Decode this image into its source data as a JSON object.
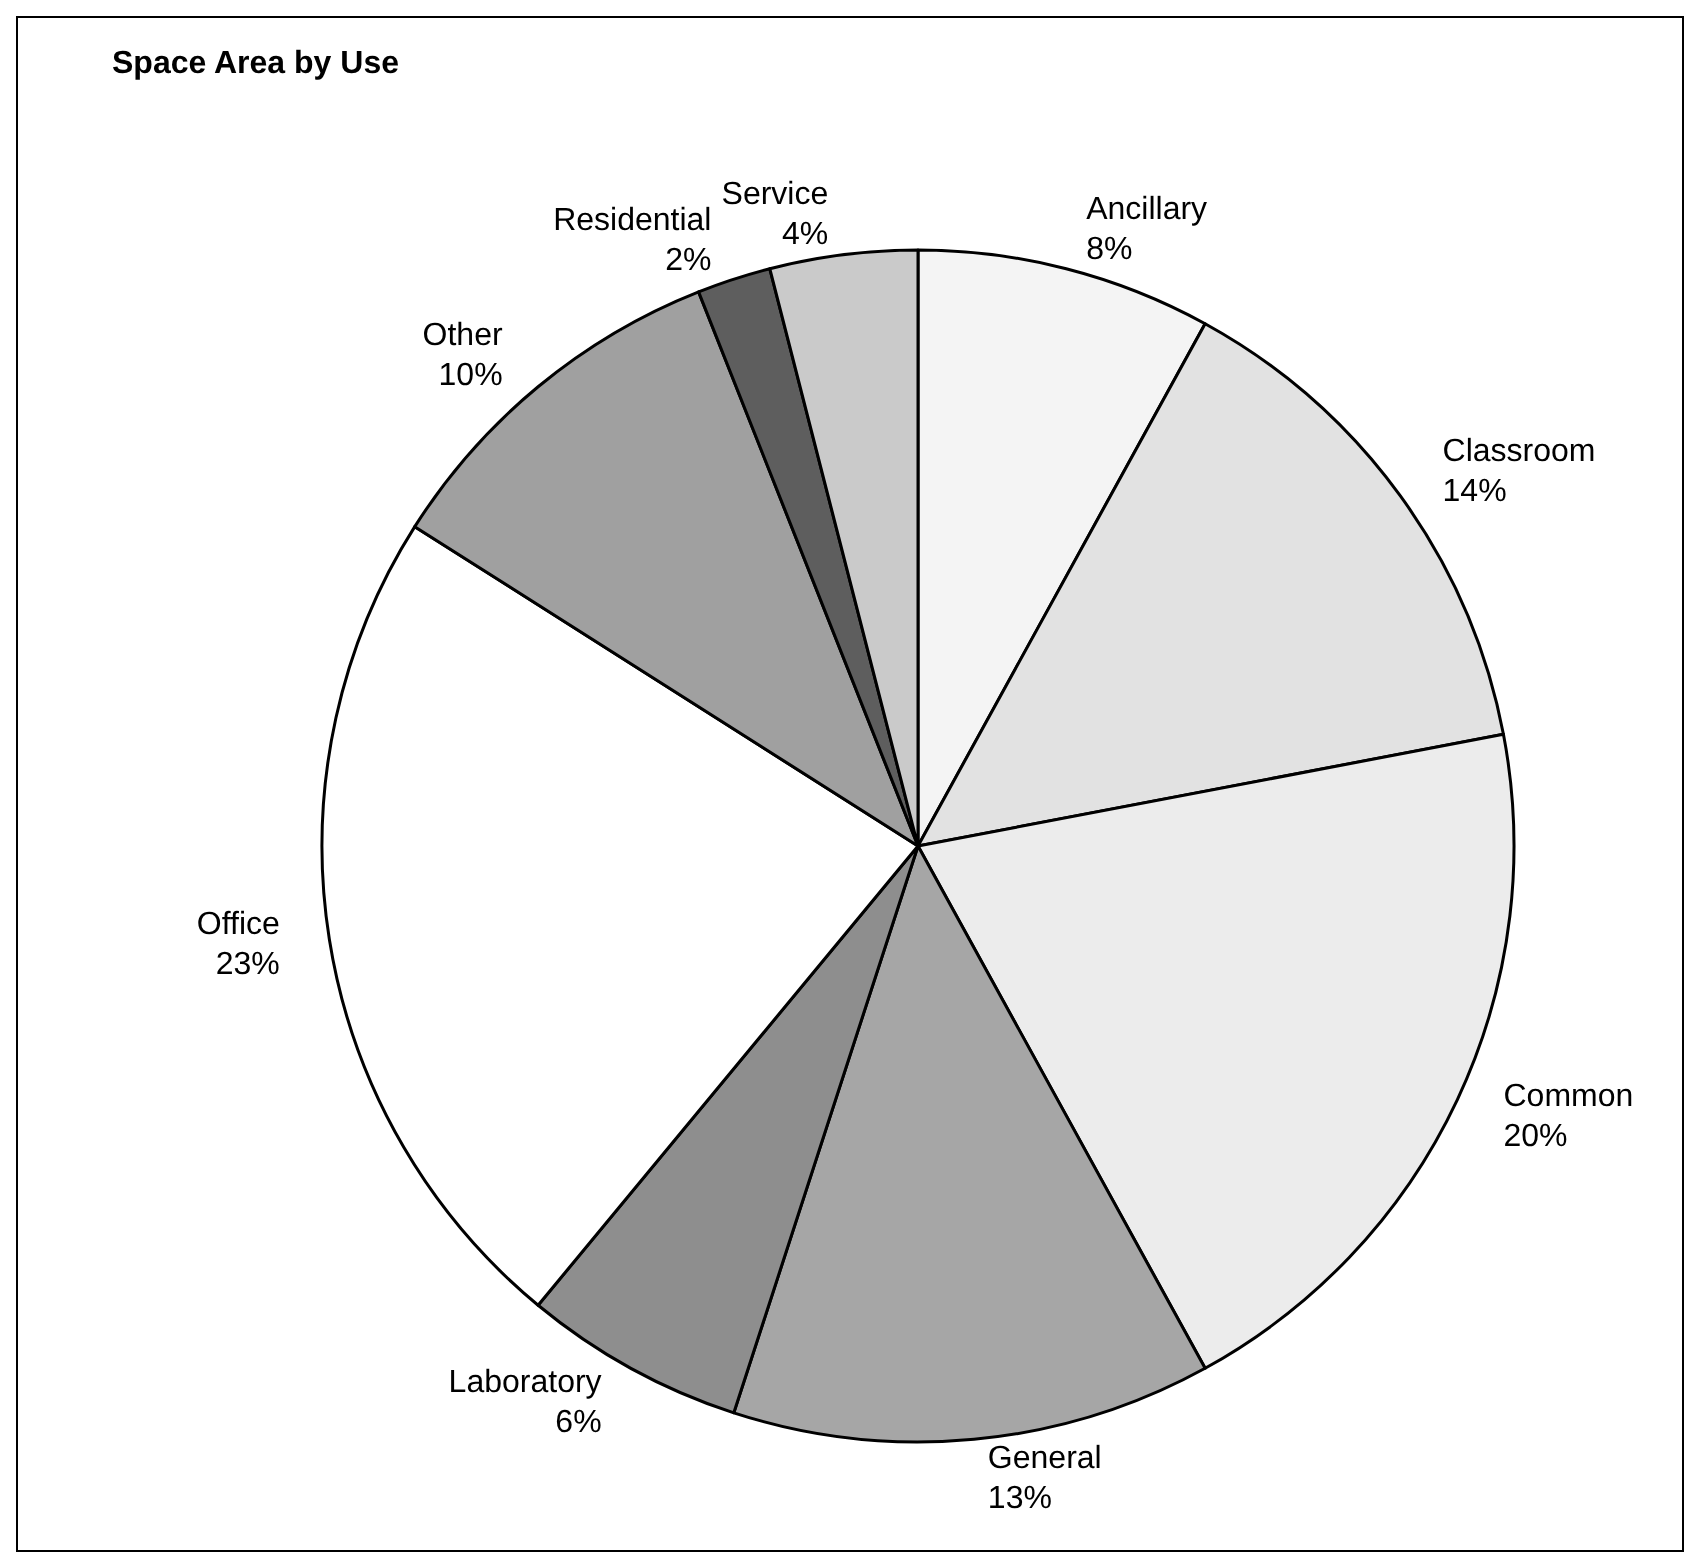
{
  "chart_data": {
    "type": "pie",
    "title": "Space Area by Use",
    "categories": [
      "Ancillary",
      "Classroom",
      "Common",
      "General",
      "Laboratory",
      "Office",
      "Other",
      "Residential",
      "Service"
    ],
    "values": [
      8,
      14,
      20,
      13,
      6,
      23,
      10,
      2,
      4
    ],
    "value_labels": [
      "8%",
      "14%",
      "20%",
      "13%",
      "6%",
      "23%",
      "10%",
      "2%",
      "4%"
    ],
    "colors": [
      "#f4f4f4",
      "#e2e2e2",
      "#ececec",
      "#a6a6a6",
      "#8e8e8e",
      "#ffffff",
      "#a0a0a0",
      "#5e5e5e",
      "#cacaca"
    ],
    "legend": false
  }
}
